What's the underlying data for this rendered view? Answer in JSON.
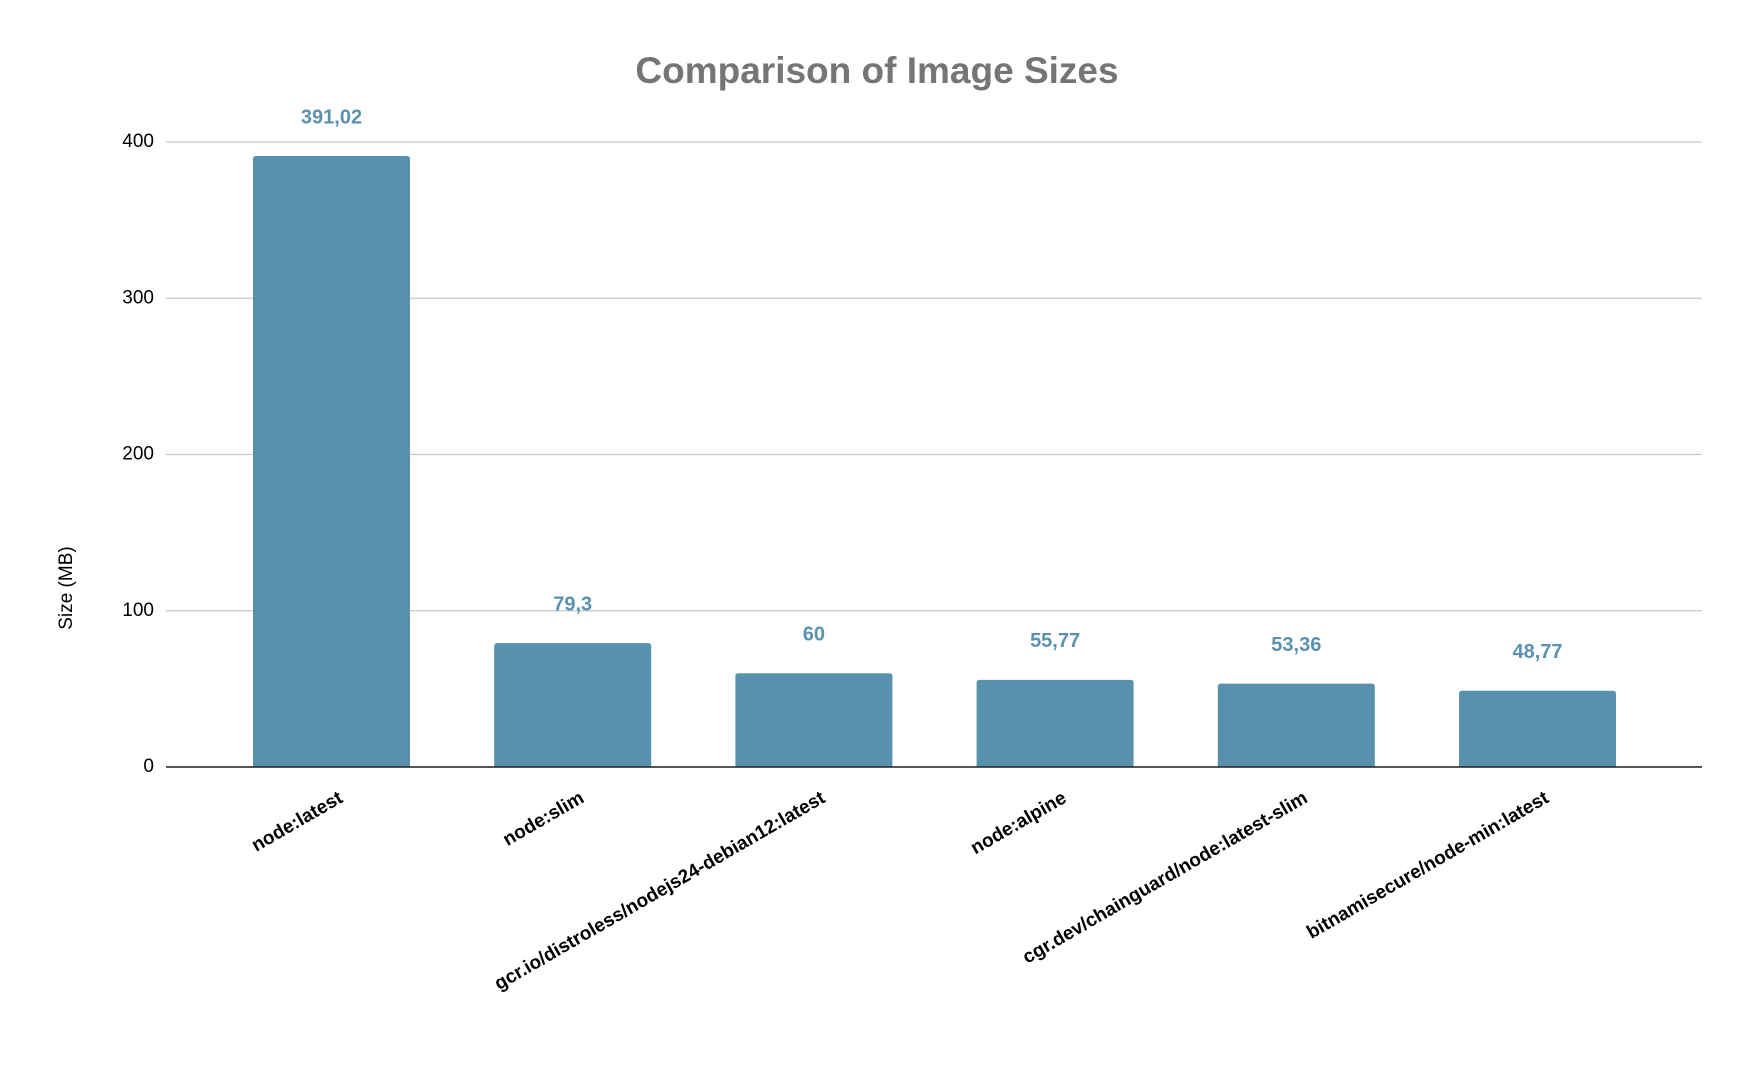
{
  "chart_data": {
    "type": "bar",
    "title": "Comparison of Image Sizes",
    "y_label": "Size (MB)",
    "categories": [
      "node:latest",
      "node:slim",
      "gcr.io/distroless/nodejs24-debian12:latest",
      "node:alpine",
      "cgr.dev/chainguard/node:latest-slim",
      "bitnamisecure/node-min:latest"
    ],
    "values": [
      391.02,
      79.3,
      60,
      55.77,
      53.36,
      48.77
    ],
    "value_labels": [
      "391,02",
      "79,3",
      "60",
      "55,77",
      "53,36",
      "48,77"
    ],
    "color": "#5891ae",
    "ylim": [
      0,
      400
    ],
    "yticks": [
      0,
      100,
      200,
      300,
      400
    ],
    "grid": true
  }
}
